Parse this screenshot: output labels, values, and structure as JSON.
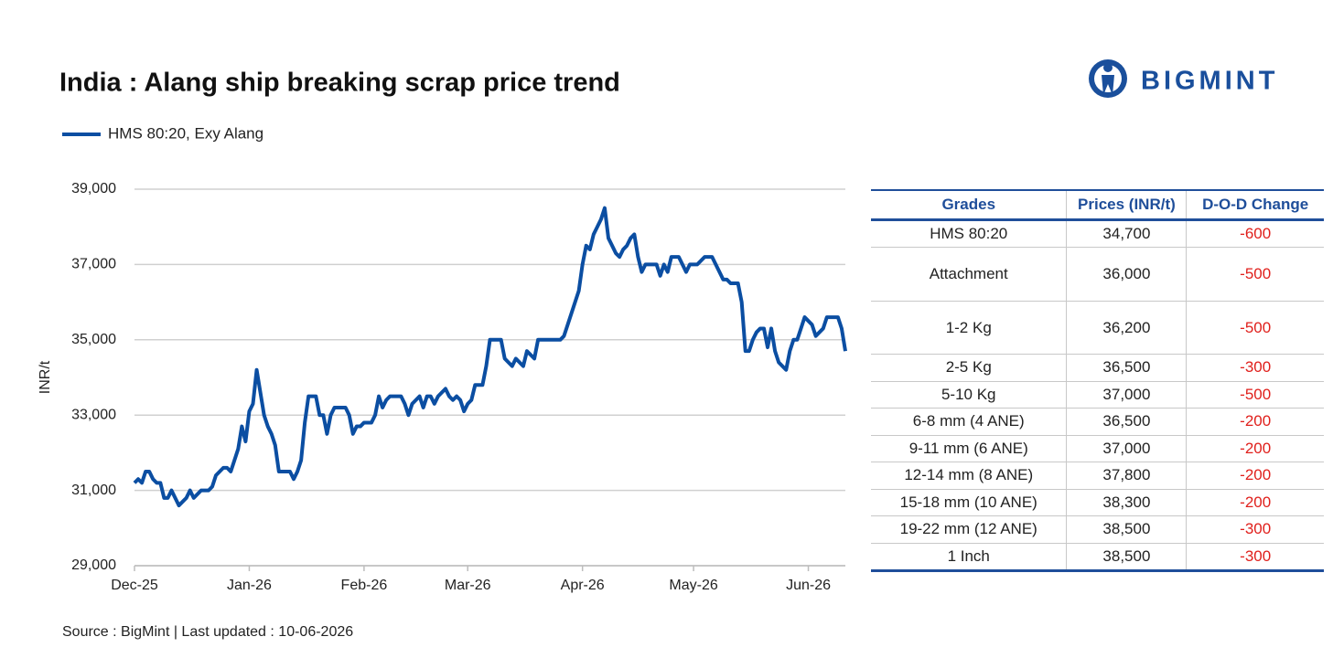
{
  "chart_data": {
    "type": "line",
    "title": "India : Alang ship breaking scrap price trend",
    "y_label": "INR/t",
    "categories": [
      "Dec-25",
      null,
      null,
      null,
      null,
      null,
      null,
      null,
      null,
      null,
      null,
      null,
      null,
      null,
      null,
      null,
      null,
      null,
      null,
      null,
      null,
      null,
      null,
      null,
      null,
      null,
      null,
      null,
      null,
      null,
      null,
      "Jan-26",
      null,
      null,
      null,
      null,
      null,
      null,
      null,
      null,
      null,
      null,
      null,
      null,
      null,
      null,
      null,
      null,
      null,
      null,
      null,
      null,
      null,
      null,
      null,
      null,
      null,
      null,
      null,
      null,
      null,
      null,
      "Feb-26",
      null,
      null,
      null,
      null,
      null,
      null,
      null,
      null,
      null,
      null,
      null,
      null,
      null,
      null,
      null,
      null,
      null,
      null,
      null,
      null,
      null,
      null,
      null,
      null,
      null,
      null,
      null,
      "Mar-26",
      null,
      null,
      null,
      null,
      null,
      null,
      null,
      null,
      null,
      null,
      null,
      null,
      null,
      null,
      null,
      null,
      null,
      null,
      null,
      null,
      null,
      null,
      null,
      null,
      null,
      null,
      null,
      null,
      null,
      null,
      "Apr-26",
      null,
      null,
      null,
      null,
      null,
      null,
      null,
      null,
      null,
      null,
      null,
      null,
      null,
      null,
      null,
      null,
      null,
      null,
      null,
      null,
      null,
      null,
      null,
      null,
      null,
      null,
      null,
      null,
      null,
      "May-26",
      null,
      null,
      null,
      null,
      null,
      null,
      null,
      null,
      null,
      null,
      null,
      null,
      null,
      null,
      null,
      null,
      null,
      null,
      null,
      null,
      null,
      null,
      null,
      null,
      null,
      null,
      null,
      null,
      null,
      null,
      "Jun-26",
      null,
      null,
      null,
      null,
      null,
      null,
      null,
      null,
      null,
      null
    ],
    "series": [
      {
        "name": "HMS 80:20, Exy Alang",
        "color": "#0b4ea2",
        "values": [
          31200,
          31300,
          31200,
          31500,
          31500,
          31300,
          31200,
          31200,
          30800,
          30800,
          31000,
          30800,
          30600,
          30700,
          30800,
          31000,
          30800,
          30900,
          31000,
          31000,
          31000,
          31100,
          31400,
          31500,
          31600,
          31600,
          31500,
          31800,
          32100,
          32700,
          32300,
          33100,
          33300,
          34200,
          33600,
          33000,
          32700,
          32500,
          32200,
          31500,
          31500,
          31500,
          31500,
          31300,
          31500,
          31800,
          32800,
          33500,
          33500,
          33500,
          33000,
          33000,
          32500,
          33000,
          33200,
          33200,
          33200,
          33200,
          33000,
          32500,
          32700,
          32700,
          32800,
          32800,
          32800,
          33000,
          33500,
          33200,
          33400,
          33500,
          33500,
          33500,
          33500,
          33300,
          33000,
          33300,
          33400,
          33500,
          33200,
          33500,
          33500,
          33300,
          33500,
          33600,
          33700,
          33500,
          33400,
          33500,
          33400,
          33100,
          33300,
          33400,
          33800,
          33800,
          33800,
          34300,
          35000,
          35000,
          35000,
          35000,
          34500,
          34400,
          34300,
          34500,
          34400,
          34300,
          34700,
          34600,
          34500,
          35000,
          35000,
          35000,
          35000,
          35000,
          35000,
          35000,
          35100,
          35400,
          35700,
          36000,
          36300,
          37000,
          37500,
          37400,
          37800,
          38000,
          38200,
          38500,
          37700,
          37500,
          37300,
          37200,
          37400,
          37500,
          37700,
          37800,
          37200,
          36800,
          37000,
          37000,
          37000,
          37000,
          36700,
          37000,
          36800,
          37200,
          37200,
          37200,
          37000,
          36800,
          37000,
          37000,
          37000,
          37100,
          37200,
          37200,
          37200,
          37000,
          36800,
          36600,
          36600,
          36500,
          36500,
          36500,
          36000,
          34700,
          34700,
          35000,
          35200,
          35300,
          35300,
          34800,
          35300,
          34700,
          34400,
          34300,
          34200,
          34700,
          35000,
          35000,
          35300,
          35600,
          35500,
          35400,
          35100,
          35200,
          35300,
          35600,
          35600,
          35600,
          35600,
          35300,
          34700
        ]
      }
    ],
    "ylim": [
      29000,
      39000
    ],
    "yticks": [
      {
        "value": 29000,
        "label": "29,000"
      },
      {
        "value": 31000,
        "label": "31,000"
      },
      {
        "value": 33000,
        "label": "33,000"
      },
      {
        "value": 35000,
        "label": "35,000"
      },
      {
        "value": 37000,
        "label": "37,000"
      },
      {
        "value": 39000,
        "label": "39,000"
      }
    ],
    "grid": true,
    "legend": "top-left"
  },
  "logo": "BIGMINT",
  "source": "Source : BigMint | Last updated : 10-06-2026",
  "table": {
    "header": [
      "Grades",
      "Prices (INR/t)",
      "D-O-D Change"
    ],
    "rows": [
      [
        "HMS 80:20",
        "34,700",
        "-600"
      ],
      [
        "Attachment",
        "36,000",
        "-500"
      ],
      [
        "1-2 Kg",
        "36,200",
        "-500"
      ],
      [
        "2-5 Kg",
        "36,500",
        "-300"
      ],
      [
        "5-10 Kg",
        "37,000",
        "-500"
      ],
      [
        "6-8 mm (4 ANE)",
        "36,500",
        "-200"
      ],
      [
        "9-11 mm (6 ANE)",
        "37,000",
        "-200"
      ],
      [
        "12-14 mm (8 ANE)",
        "37,800",
        "-200"
      ],
      [
        "15-18 mm (10 ANE)",
        "38,300",
        "-200"
      ],
      [
        "19-22 mm (12 ANE)",
        "38,500",
        "-300"
      ],
      [
        "1 Inch",
        "38,500",
        "-300"
      ]
    ]
  }
}
